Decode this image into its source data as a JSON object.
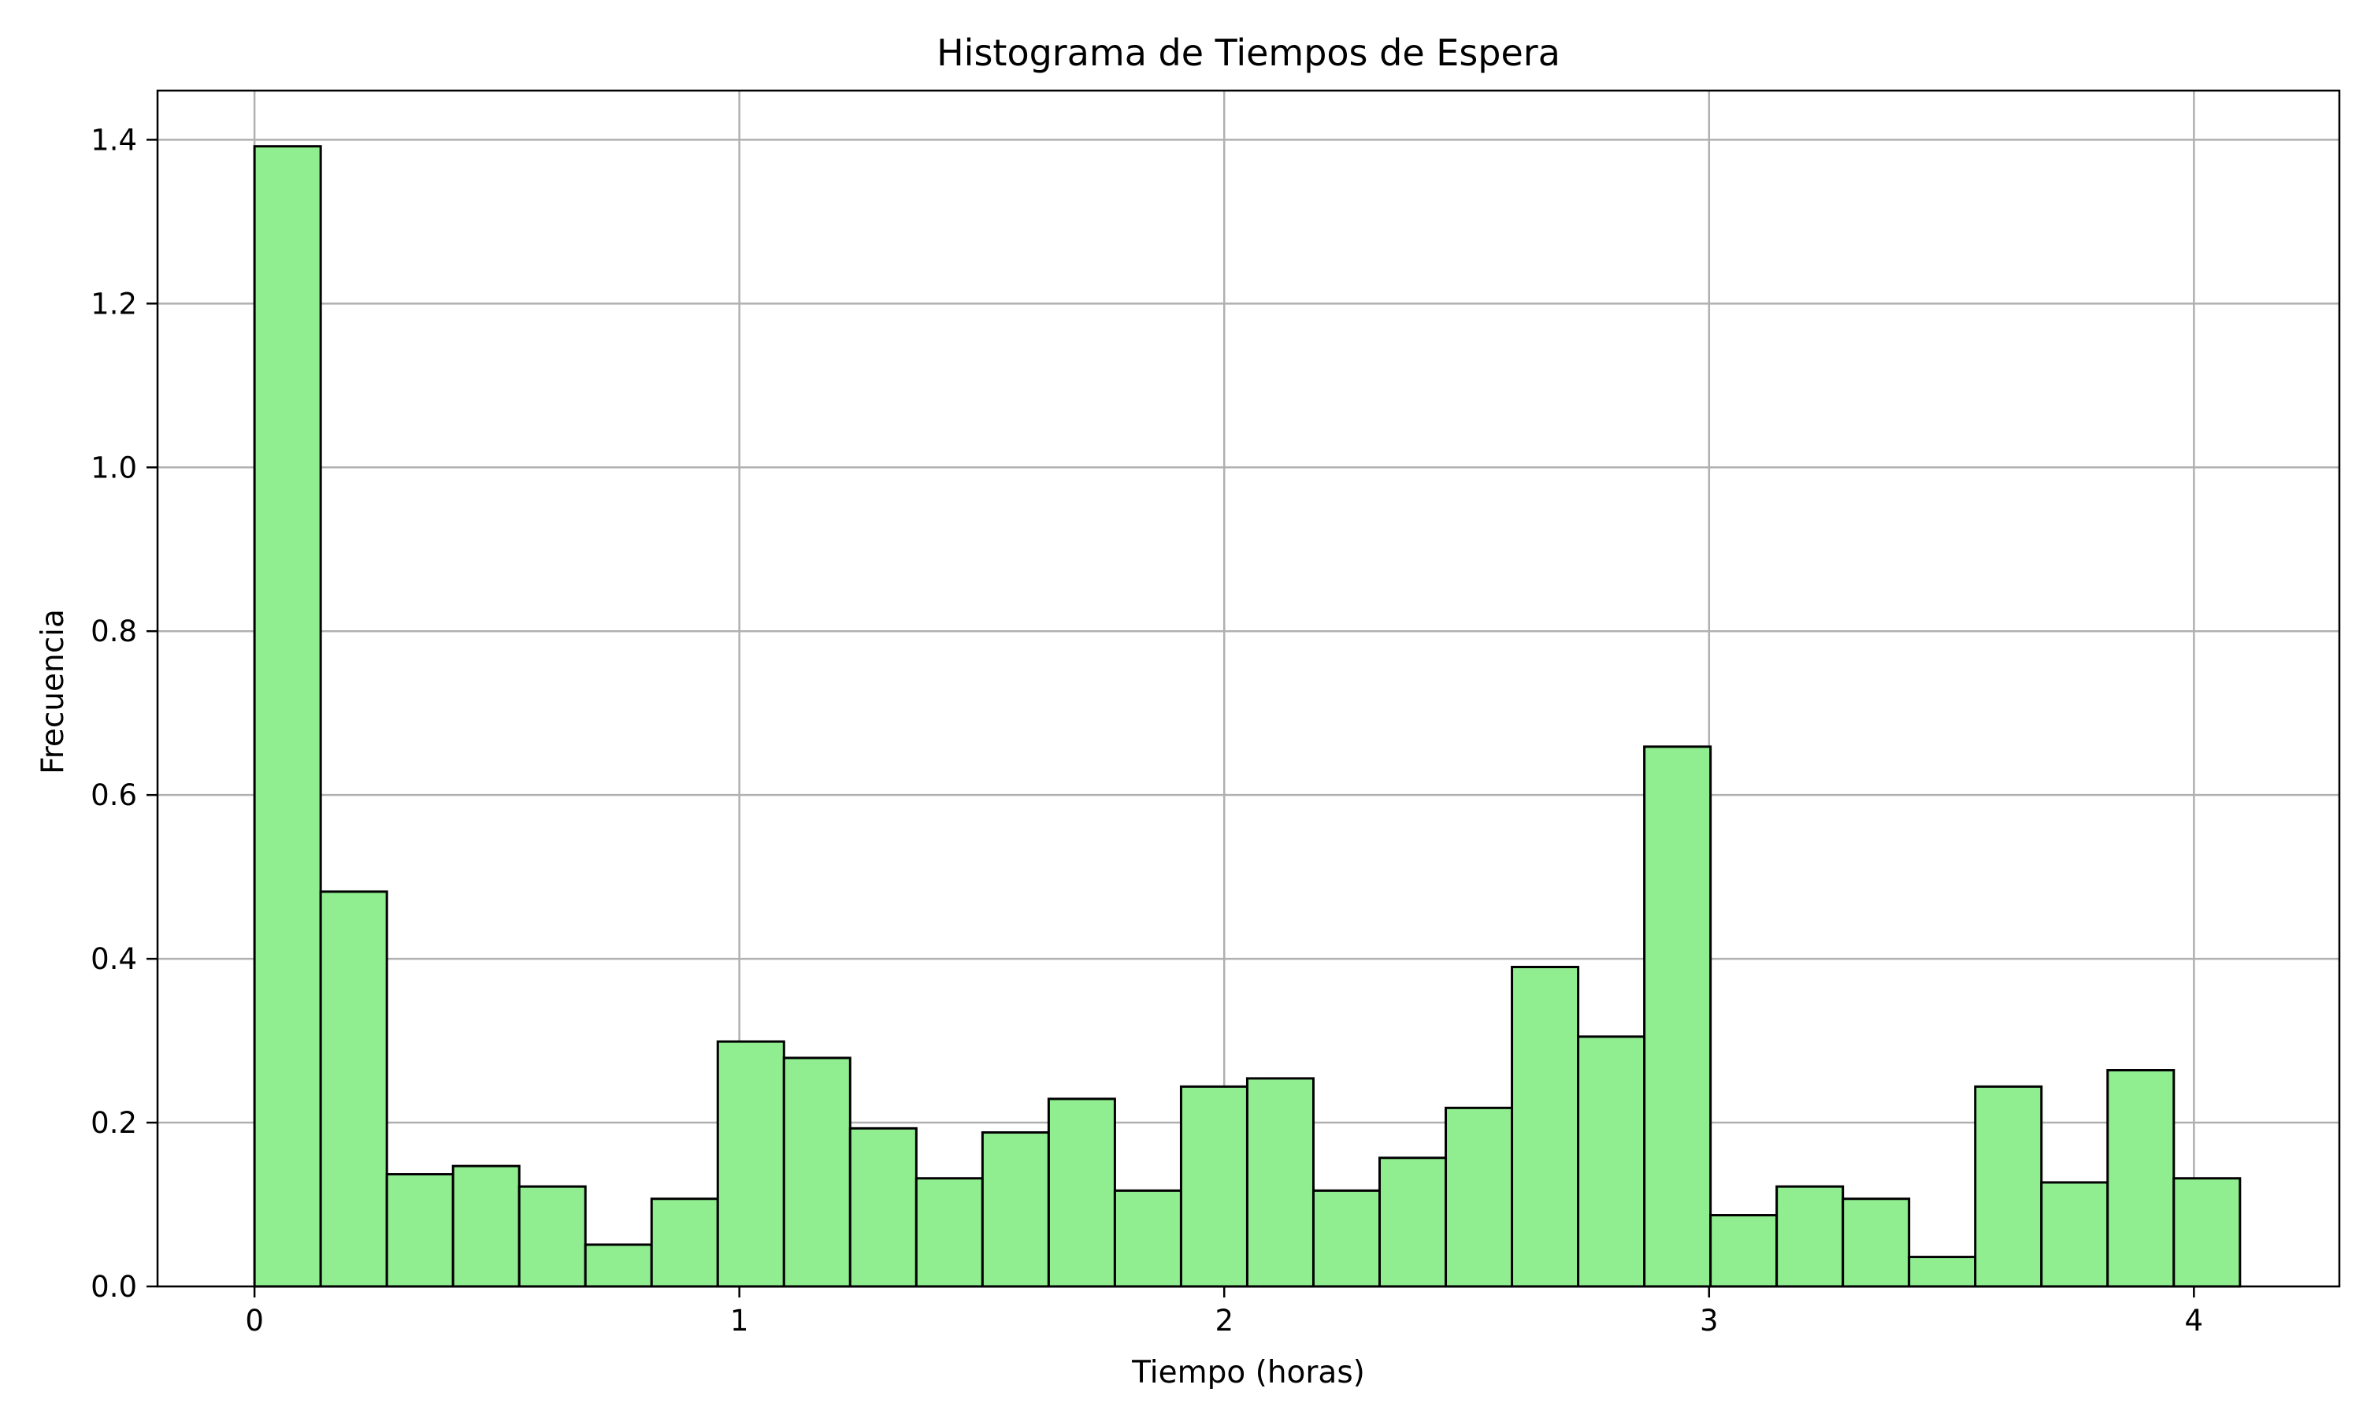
{
  "chart_data": {
    "type": "bar",
    "title": "Histograma de Tiempos de Espera",
    "xlabel": "Tiempo (horas)",
    "ylabel": "Frecuencia",
    "bin_start": 0.0,
    "bin_width": 0.1365,
    "values": [
      1.392,
      0.482,
      0.137,
      0.147,
      0.122,
      0.051,
      0.107,
      0.299,
      0.279,
      0.193,
      0.132,
      0.188,
      0.229,
      0.117,
      0.244,
      0.254,
      0.117,
      0.157,
      0.218,
      0.39,
      0.305,
      0.659,
      0.087,
      0.122,
      0.107,
      0.036,
      0.244,
      0.127,
      0.264,
      0.132
    ],
    "xlim": [
      -0.2,
      4.3
    ],
    "ylim": [
      0,
      1.46
    ],
    "xticks": [
      0,
      1,
      2,
      3,
      4
    ],
    "xtick_labels": [
      "0",
      "1",
      "2",
      "3",
      "4"
    ],
    "yticks": [
      0.0,
      0.2,
      0.4,
      0.6,
      0.8,
      1.0,
      1.2,
      1.4
    ],
    "ytick_labels": [
      "0.0",
      "0.2",
      "0.4",
      "0.6",
      "0.8",
      "1.0",
      "1.2",
      "1.4"
    ],
    "grid": true,
    "colors": {
      "bar_fill": "#90ee90",
      "bar_edge": "#000000",
      "grid": "#b0b0b0"
    }
  }
}
